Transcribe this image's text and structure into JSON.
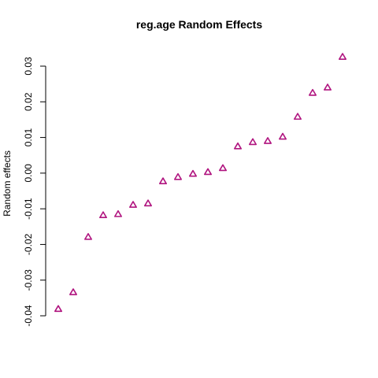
{
  "chart_data": {
    "type": "scatter",
    "title": "reg.age Random Effects",
    "xlabel": "",
    "ylabel": "Random effects",
    "marker": "triangle",
    "marker_color": "#b0147f",
    "ylim": [
      -0.04,
      0.03
    ],
    "yticks": [
      -0.04,
      -0.03,
      -0.02,
      -0.01,
      0.0,
      0.01,
      0.02,
      0.03
    ],
    "ytick_labels": [
      "-0.04",
      "-0.03",
      "-0.02",
      "-0.01",
      "0.00",
      "0.01",
      "0.02",
      "0.03"
    ],
    "x_axis_shown": false,
    "grid": false,
    "x": [
      1,
      2,
      3,
      4,
      5,
      6,
      7,
      8,
      9,
      10,
      11,
      12,
      13,
      14,
      15,
      16,
      17,
      18,
      19,
      20
    ],
    "y": [
      -0.0381,
      -0.0334,
      -0.0179,
      -0.0118,
      -0.0115,
      -0.0089,
      -0.0085,
      -0.0023,
      -0.0011,
      -0.0002,
      0.0003,
      0.0014,
      0.0075,
      0.0087,
      0.009,
      0.0102,
      0.0158,
      0.0225,
      0.024,
      0.0326
    ]
  }
}
